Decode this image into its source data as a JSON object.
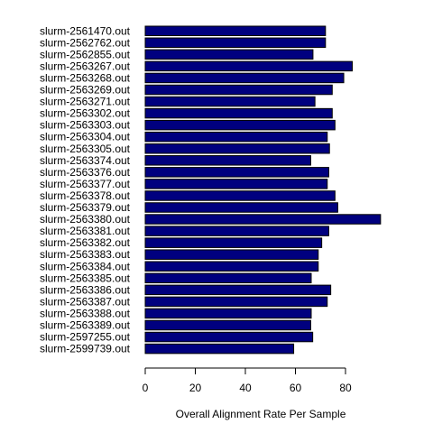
{
  "chart_data": {
    "type": "bar",
    "orientation": "horizontal",
    "xlabel": "Overall Alignment Rate Per Sample",
    "ylabel": "",
    "title": "",
    "xlim": [
      0,
      95
    ],
    "xticks": [
      0,
      20,
      40,
      60,
      80
    ],
    "grid": false,
    "colors": {
      "bar_fill": "#00007f",
      "bar_stroke": "#000000",
      "text": "#000000"
    },
    "categories": [
      "slurm-2561470.out",
      "slurm-2562762.out",
      "slurm-2562855.out",
      "slurm-2563267.out",
      "slurm-2563268.out",
      "slurm-2563269.out",
      "slurm-2563271.out",
      "slurm-2563302.out",
      "slurm-2563303.out",
      "slurm-2563304.out",
      "slurm-2563305.out",
      "slurm-2563374.out",
      "slurm-2563376.out",
      "slurm-2563377.out",
      "slurm-2563378.out",
      "slurm-2563379.out",
      "slurm-2563380.out",
      "slurm-2563381.out",
      "slurm-2563382.out",
      "slurm-2563383.out",
      "slurm-2563384.out",
      "slurm-2563385.out",
      "slurm-2563386.out",
      "slurm-2563387.out",
      "slurm-2563388.out",
      "slurm-2563389.out",
      "slurm-2597255.out",
      "slurm-2599739.out"
    ],
    "values": [
      72.0,
      72.0,
      67.0,
      82.7,
      79.3,
      74.7,
      67.8,
      74.7,
      75.8,
      72.7,
      73.6,
      66.1,
      73.3,
      72.7,
      75.8,
      76.9,
      94.0,
      73.3,
      70.5,
      69.1,
      69.1,
      66.3,
      74.1,
      72.7,
      66.3,
      66.1,
      66.9,
      59.3
    ]
  }
}
